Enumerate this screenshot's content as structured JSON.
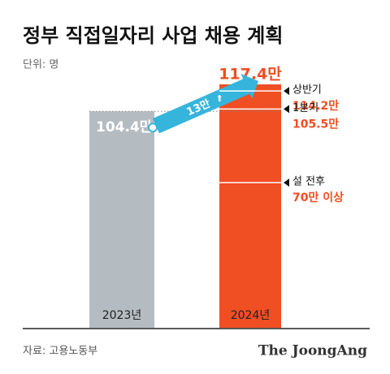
{
  "chart_data": {
    "type": "bar",
    "title": "정부 직접일자리 사업 채용 계획",
    "unit": "단위: 명",
    "categories": [
      "2023년",
      "2024년"
    ],
    "values": [
      104.4,
      117.4
    ],
    "value_labels": [
      "104.4만",
      "117.4만"
    ],
    "colors": [
      "#b5bcc1",
      "#f04e23"
    ],
    "increase": {
      "value": 13,
      "label": "13만",
      "color": "#36b5dc"
    },
    "markers": [
      {
        "name": "상반기",
        "value": 114.2,
        "label": "114.2만"
      },
      {
        "name": "1분기",
        "value": 105.5,
        "label": "105.5만"
      },
      {
        "name": "설 전후",
        "value": 70,
        "label": "70만 이상"
      }
    ],
    "source": "자료: 고용노동부",
    "logo": "The JoongAng"
  }
}
